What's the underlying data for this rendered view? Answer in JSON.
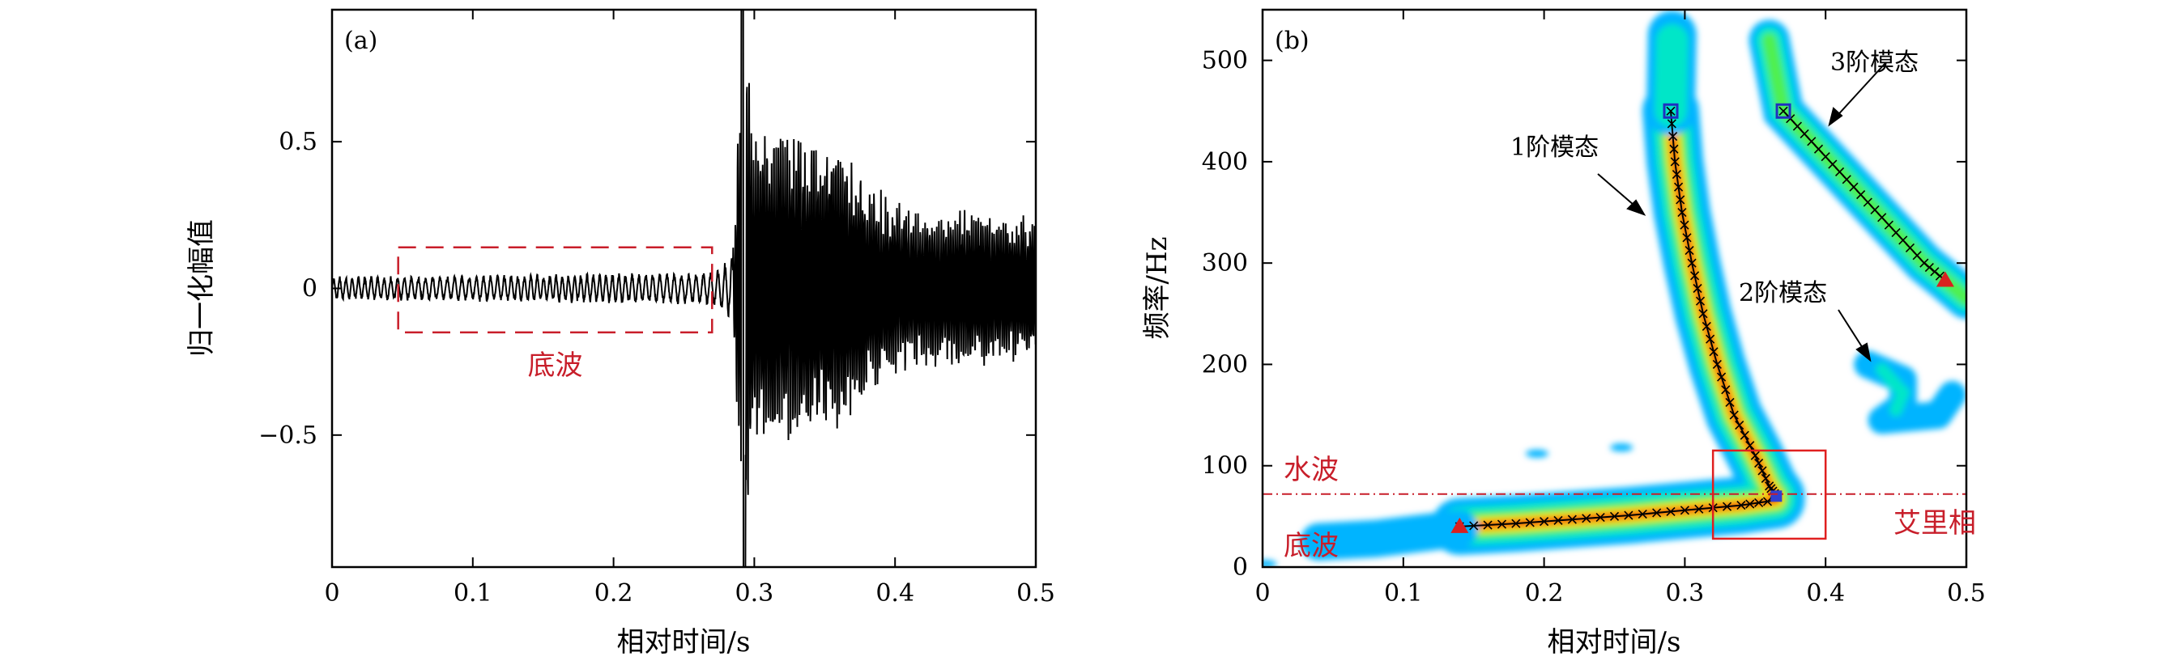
{
  "chart_data": [
    {
      "type": "line",
      "panel_label": "(a)",
      "xlabel": "相对时间/s",
      "ylabel": "归一化幅值",
      "xlim": [
        0,
        0.5
      ],
      "ylim": [
        -0.95,
        0.95
      ],
      "x_ticks": [
        "0",
        "0.1",
        "0.2",
        "0.3",
        "0.4",
        "0.5"
      ],
      "y_ticks": [
        "0.5",
        "0",
        "−0.5"
      ],
      "x_tick_values": [
        0,
        0.1,
        0.2,
        0.3,
        0.4,
        0.5
      ],
      "y_tick_values": [
        0.5,
        0,
        -0.5
      ],
      "series": [
        {
          "color": "#000000",
          "envelope": [
            {
              "x": 0.0,
              "amp": 0.05
            },
            {
              "x": 0.27,
              "amp": 0.07
            },
            {
              "x": 0.285,
              "amp": 0.15
            },
            {
              "x": 0.292,
              "amp": 0.95
            },
            {
              "x": 0.3,
              "amp": 0.55
            },
            {
              "x": 0.36,
              "amp": 0.5
            },
            {
              "x": 0.4,
              "amp": 0.3
            },
            {
              "x": 0.5,
              "amp": 0.25
            }
          ]
        }
      ],
      "annotations": [
        {
          "text": "底波",
          "color": "#c81e2a",
          "box_x": [
            0.047,
            0.27
          ],
          "box_y": [
            -0.15,
            0.14
          ]
        }
      ]
    },
    {
      "type": "heatmap",
      "panel_label": "(b)",
      "xlabel": "相对时间/s",
      "ylabel": "频率/Hz",
      "xlim": [
        0,
        0.5
      ],
      "ylim": [
        0,
        550
      ],
      "x_ticks": [
        "0",
        "0.1",
        "0.2",
        "0.3",
        "0.4",
        "0.5"
      ],
      "y_ticks": [
        "0",
        "100",
        "200",
        "300",
        "400",
        "500"
      ],
      "x_tick_values": [
        0,
        0.1,
        0.2,
        0.3,
        0.4,
        0.5
      ],
      "y_tick_values": [
        0,
        100,
        200,
        300,
        400,
        500
      ],
      "colormap": [
        "#00b4ff",
        "#00e6c8",
        "#50f050",
        "#ffe600",
        "#ff8c00",
        "#e61e14"
      ],
      "series": [
        {
          "name": "1阶模态",
          "points": [
            [
              0.29,
              450
            ],
            [
              0.293,
              400
            ],
            [
              0.298,
              350
            ],
            [
              0.305,
              300
            ],
            [
              0.313,
              250
            ],
            [
              0.323,
              200
            ],
            [
              0.335,
              150
            ],
            [
              0.35,
              110
            ],
            [
              0.36,
              80
            ],
            [
              0.365,
              70
            ]
          ]
        },
        {
          "name": "3阶模态",
          "points": [
            [
              0.37,
              450
            ],
            [
              0.39,
              420
            ],
            [
              0.41,
              390
            ],
            [
              0.43,
              360
            ],
            [
              0.45,
              330
            ],
            [
              0.47,
              300
            ],
            [
              0.485,
              283
            ]
          ]
        },
        {
          "name": "艾里相",
          "points": [
            [
              0.14,
              40
            ],
            [
              0.18,
              43
            ],
            [
              0.22,
              47
            ],
            [
              0.26,
              51
            ],
            [
              0.3,
              56
            ],
            [
              0.34,
              61
            ],
            [
              0.365,
              66
            ]
          ]
        }
      ],
      "labels": [
        {
          "text": "1阶模态",
          "color": "#000000"
        },
        {
          "text": "2阶模态",
          "color": "#000000"
        },
        {
          "text": "3阶模态",
          "color": "#000000"
        },
        {
          "text": "水波",
          "color": "#c81e2a"
        },
        {
          "text": "底波",
          "color": "#c81e2a"
        },
        {
          "text": "艾里相",
          "color": "#c81e2a"
        }
      ],
      "water_wave_frequency": 72,
      "airy_box_x": [
        0.32,
        0.4
      ],
      "airy_box_y": [
        28,
        115
      ]
    }
  ]
}
